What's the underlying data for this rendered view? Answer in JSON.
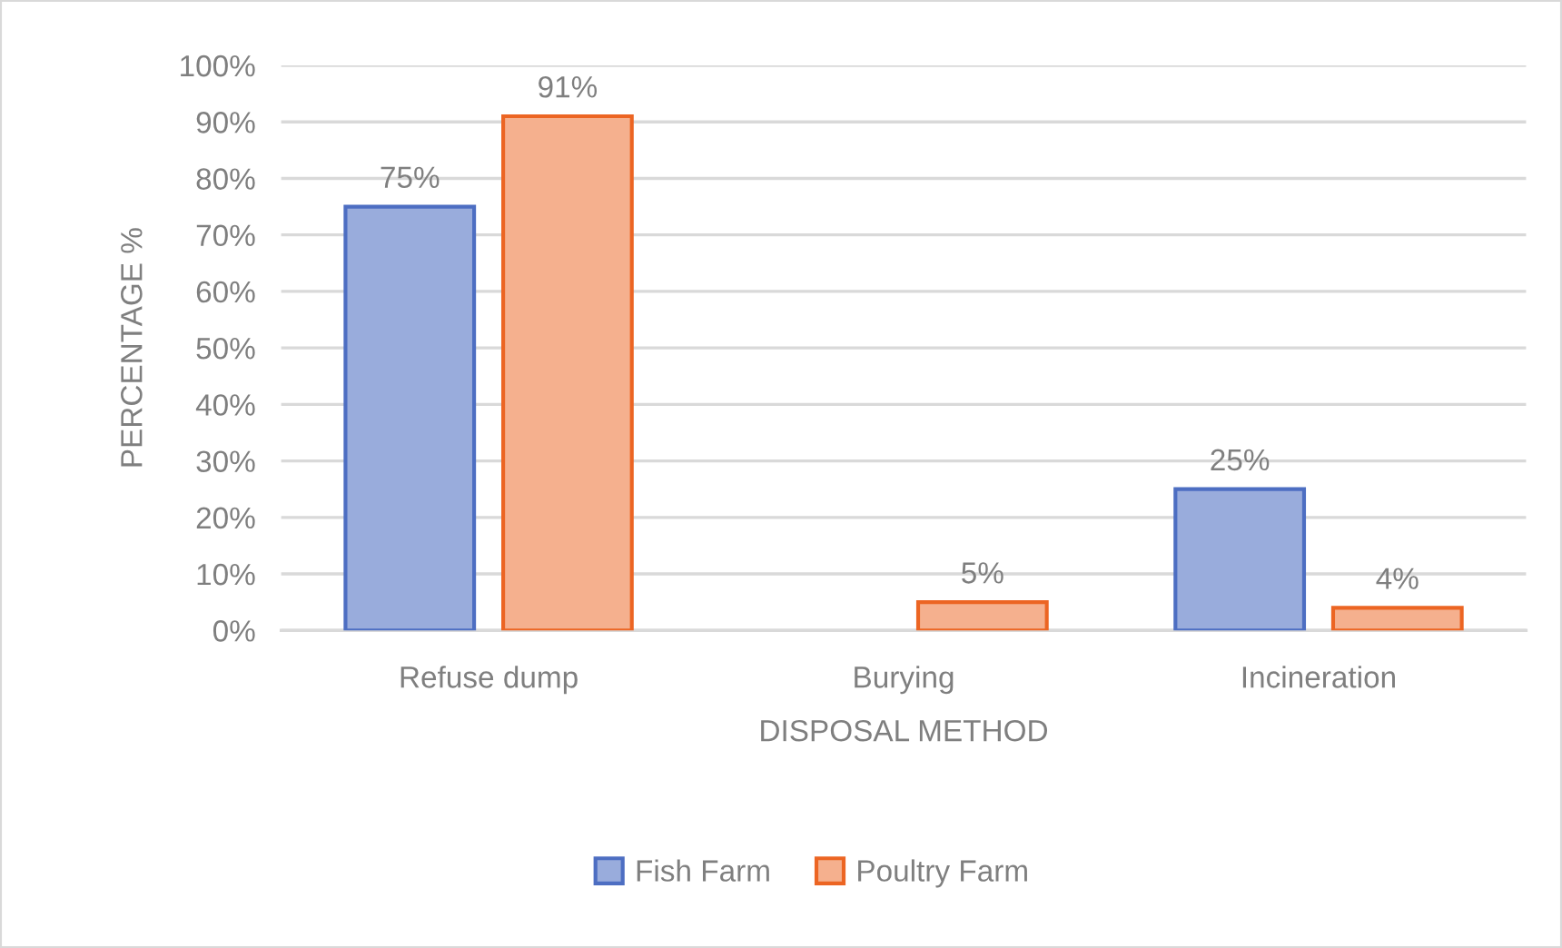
{
  "chart_data": {
    "type": "bar",
    "xlabel": "DISPOSAL METHOD",
    "ylabel": "PERCENTAGE %",
    "categories": [
      "Refuse dump",
      "Burying",
      "Incineration"
    ],
    "series": [
      {
        "name": "Fish Farm",
        "color": "#99acdc",
        "values": [
          75,
          null,
          25
        ],
        "value_labels": [
          "75%",
          null,
          "25%"
        ]
      },
      {
        "name": "Poultry Farm",
        "color": "#f5b08e",
        "values": [
          91,
          5,
          4
        ],
        "value_labels": [
          "91%",
          "5%",
          "4%"
        ]
      }
    ],
    "ylim": [
      0,
      100
    ],
    "yticks": [
      {
        "value": 0,
        "label": "0%"
      },
      {
        "value": 10,
        "label": "10%"
      },
      {
        "value": 20,
        "label": "20%"
      },
      {
        "value": 30,
        "label": "30%"
      },
      {
        "value": 40,
        "label": "40%"
      },
      {
        "value": 50,
        "label": "50%"
      },
      {
        "value": 60,
        "label": "60%"
      },
      {
        "value": 70,
        "label": "70%"
      },
      {
        "value": 80,
        "label": "80%"
      },
      {
        "value": 90,
        "label": "90%"
      },
      {
        "value": 100,
        "label": "100%"
      }
    ],
    "grid": "y",
    "legend": "bottom"
  }
}
